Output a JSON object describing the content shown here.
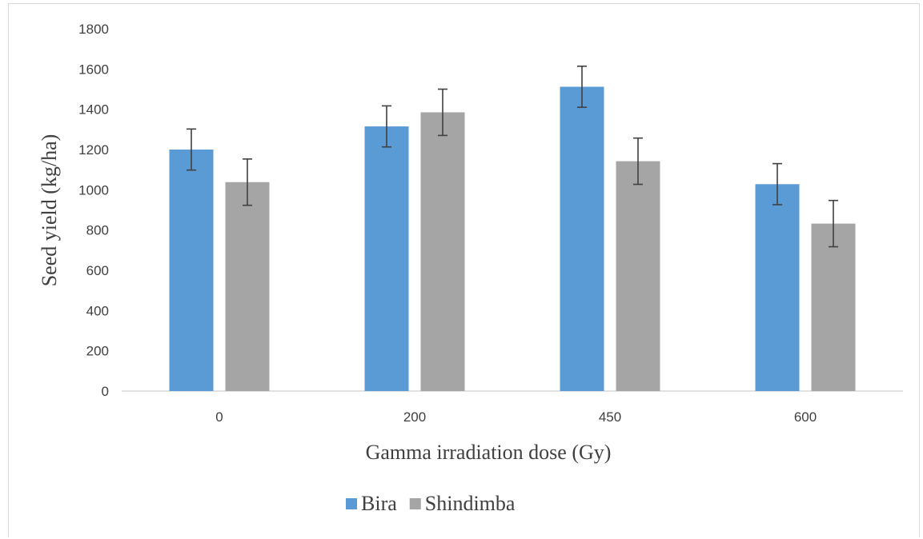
{
  "chart_data": {
    "type": "bar",
    "title": "",
    "xlabel": "Gamma irradiation dose (Gy)",
    "ylabel": "Seed yield (kg/ha)",
    "categories": [
      "0",
      "200",
      "450",
      "600"
    ],
    "ylim": [
      0,
      1800
    ],
    "yticks": [
      "0",
      "200",
      "400",
      "600",
      "800",
      "1000",
      "1200",
      "1400",
      "1600",
      "1800"
    ],
    "grid": false,
    "legend_position": "bottom",
    "series": [
      {
        "name": "Bira",
        "color": "#5b9bd5",
        "values": [
          1200,
          1315,
          1512,
          1028
        ],
        "error": [
          102,
          102,
          102,
          102
        ]
      },
      {
        "name": "Shindimba",
        "color": "#a5a5a5",
        "values": [
          1038,
          1385,
          1142,
          832
        ],
        "error": [
          115,
          115,
          115,
          115
        ]
      }
    ]
  }
}
